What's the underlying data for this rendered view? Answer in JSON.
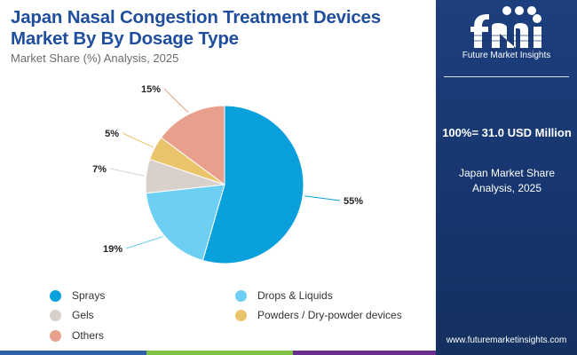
{
  "header": {
    "title": "Japan Nasal Congestion Treatment Devices Market By By Dosage Type",
    "subtitle": "Market Share (%) Analysis, 2025"
  },
  "brand": {
    "logo_text": "Future Market Insights",
    "website": "www.futuremarketinsights.com"
  },
  "summary": {
    "total": "100%= 31.0 USD Million",
    "share_label": "Japan Market Share Analysis, 2025"
  },
  "colors": {
    "title": "#1f4e9d",
    "panel": "#17366f",
    "bar": [
      "#2e5fa8",
      "#7dc242",
      "#6a2c8e"
    ]
  },
  "chart_data": {
    "type": "pie",
    "title": "Japan Nasal Congestion Treatment Devices Market By By Dosage Type",
    "subtitle": "Market Share (%) Analysis, 2025",
    "unit": "%",
    "slices": [
      {
        "label": "Sprays",
        "value": 55,
        "display": "55%",
        "color": "#0aa0dc"
      },
      {
        "label": "Drops & Liquids",
        "value": 19,
        "display": "19%",
        "color": "#6dcff2"
      },
      {
        "label": "Gels",
        "value": 7,
        "display": "7%",
        "color": "#d9d0cb"
      },
      {
        "label": "Powders / Dry-powder devices",
        "value": 5,
        "display": "5%",
        "color": "#e9c46a"
      },
      {
        "label": "Others",
        "value": 15,
        "display": "15%",
        "color": "#e8a08c"
      }
    ],
    "legend_position": "bottom"
  }
}
